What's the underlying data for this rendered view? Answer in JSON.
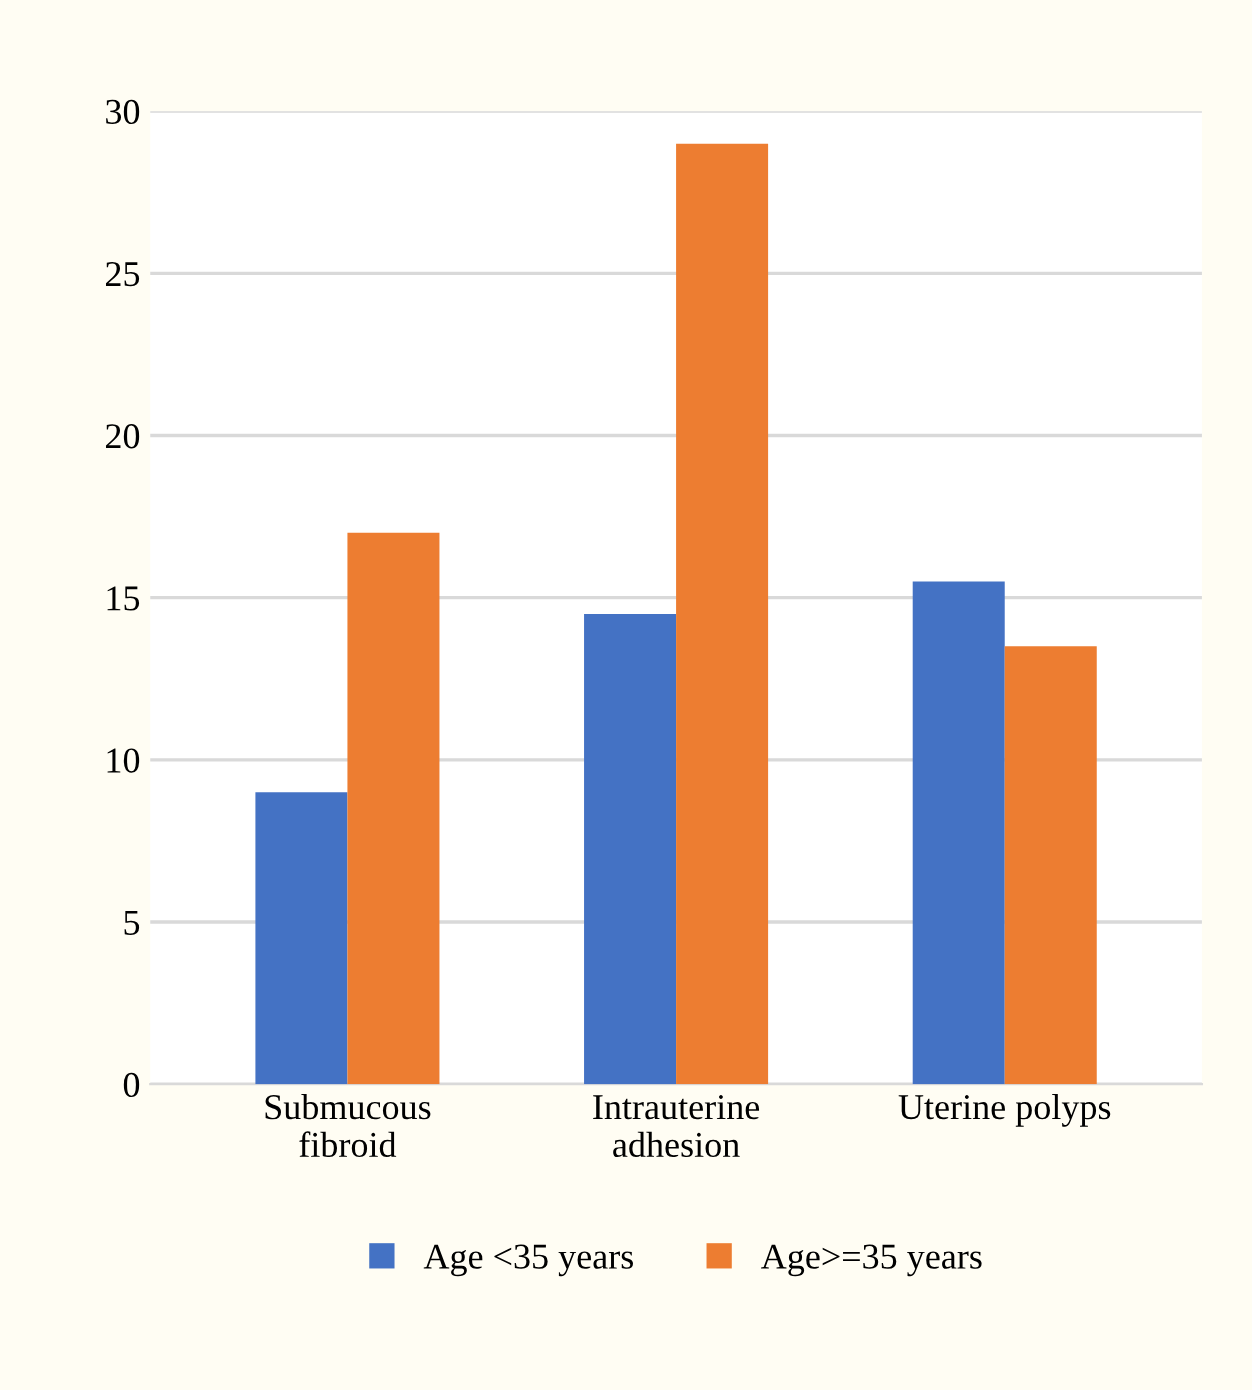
{
  "chart_data": {
    "type": "bar",
    "categories": [
      "Submucous\nfibroid",
      "Intrauterine\nadhesion",
      "Uterine polyps"
    ],
    "series": [
      {
        "name": "Age <35 years",
        "color": "#4472c4",
        "values": [
          9,
          14.5,
          15.5
        ]
      },
      {
        "name": "Age>=35 years",
        "color": "#ed7d31",
        "values": [
          17,
          29,
          13.5
        ]
      }
    ],
    "ylim": [
      0,
      30
    ],
    "yticks": [
      0,
      5,
      10,
      15,
      20,
      25,
      30
    ],
    "grid": "y",
    "legend": "bottom"
  }
}
